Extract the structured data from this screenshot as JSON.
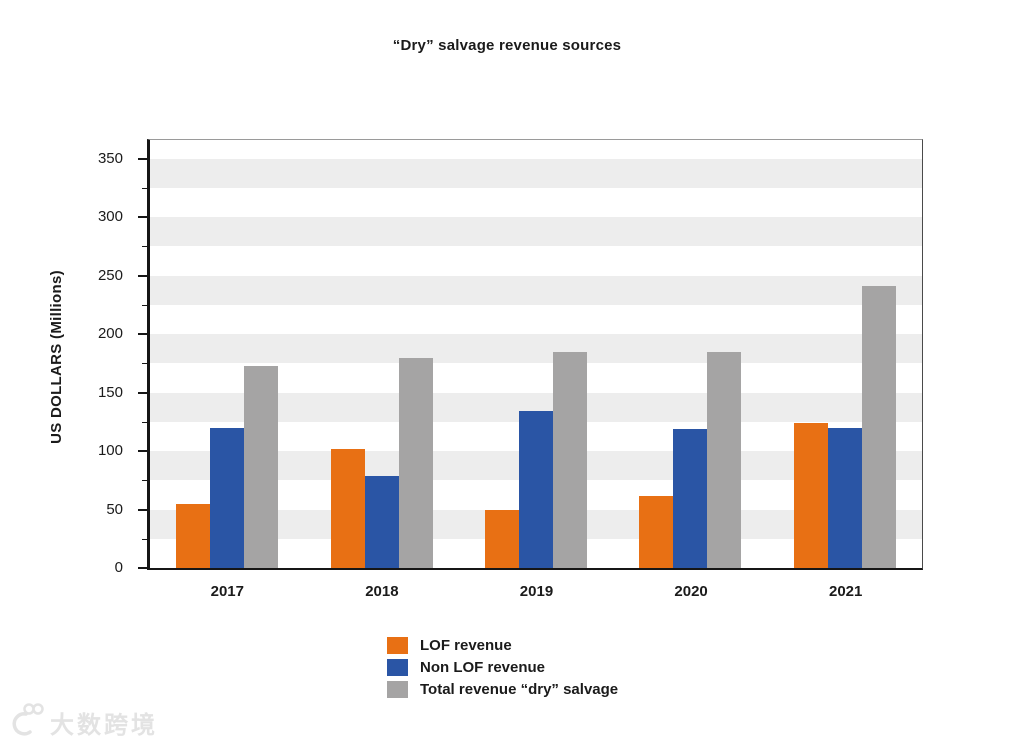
{
  "title": "“Dry” salvage revenue sources",
  "watermark": {
    "text": "大数跨境",
    "logo": "infinity-swirl-logo"
  },
  "colors": {
    "lof": "#E87014",
    "non_lof": "#2A55A5",
    "total": "#A5A4A4",
    "band": "#EDEDED",
    "axis": "#161616"
  },
  "chart_data": {
    "type": "bar",
    "title": "“Dry” salvage revenue sources",
    "xlabel": "",
    "ylabel": "US DOLLARS (Millions)",
    "categories": [
      "2017",
      "2018",
      "2019",
      "2020",
      "2021"
    ],
    "series": [
      {
        "name": "LOF revenue",
        "color": "#E87014",
        "values": [
          55,
          102,
          50,
          62,
          124
        ]
      },
      {
        "name": "Non LOF revenue",
        "color": "#2A55A5",
        "values": [
          120,
          79,
          134,
          119,
          120
        ]
      },
      {
        "name": "Total revenue “dry” salvage",
        "color": "#A5A4A4",
        "values": [
          173,
          180,
          185,
          185,
          241
        ]
      }
    ],
    "ylim": [
      0,
      350
    ],
    "yticks": [
      0,
      50,
      100,
      150,
      200,
      250,
      300,
      350
    ],
    "minor_tick_step": 25,
    "grid": "alternating-horizontal-bands-25",
    "band_color": "#EDEDED",
    "legend_position": "bottom-center-left-aligned",
    "legend": [
      "LOF revenue",
      "Non LOF revenue",
      "Total revenue “dry” salvage"
    ]
  }
}
